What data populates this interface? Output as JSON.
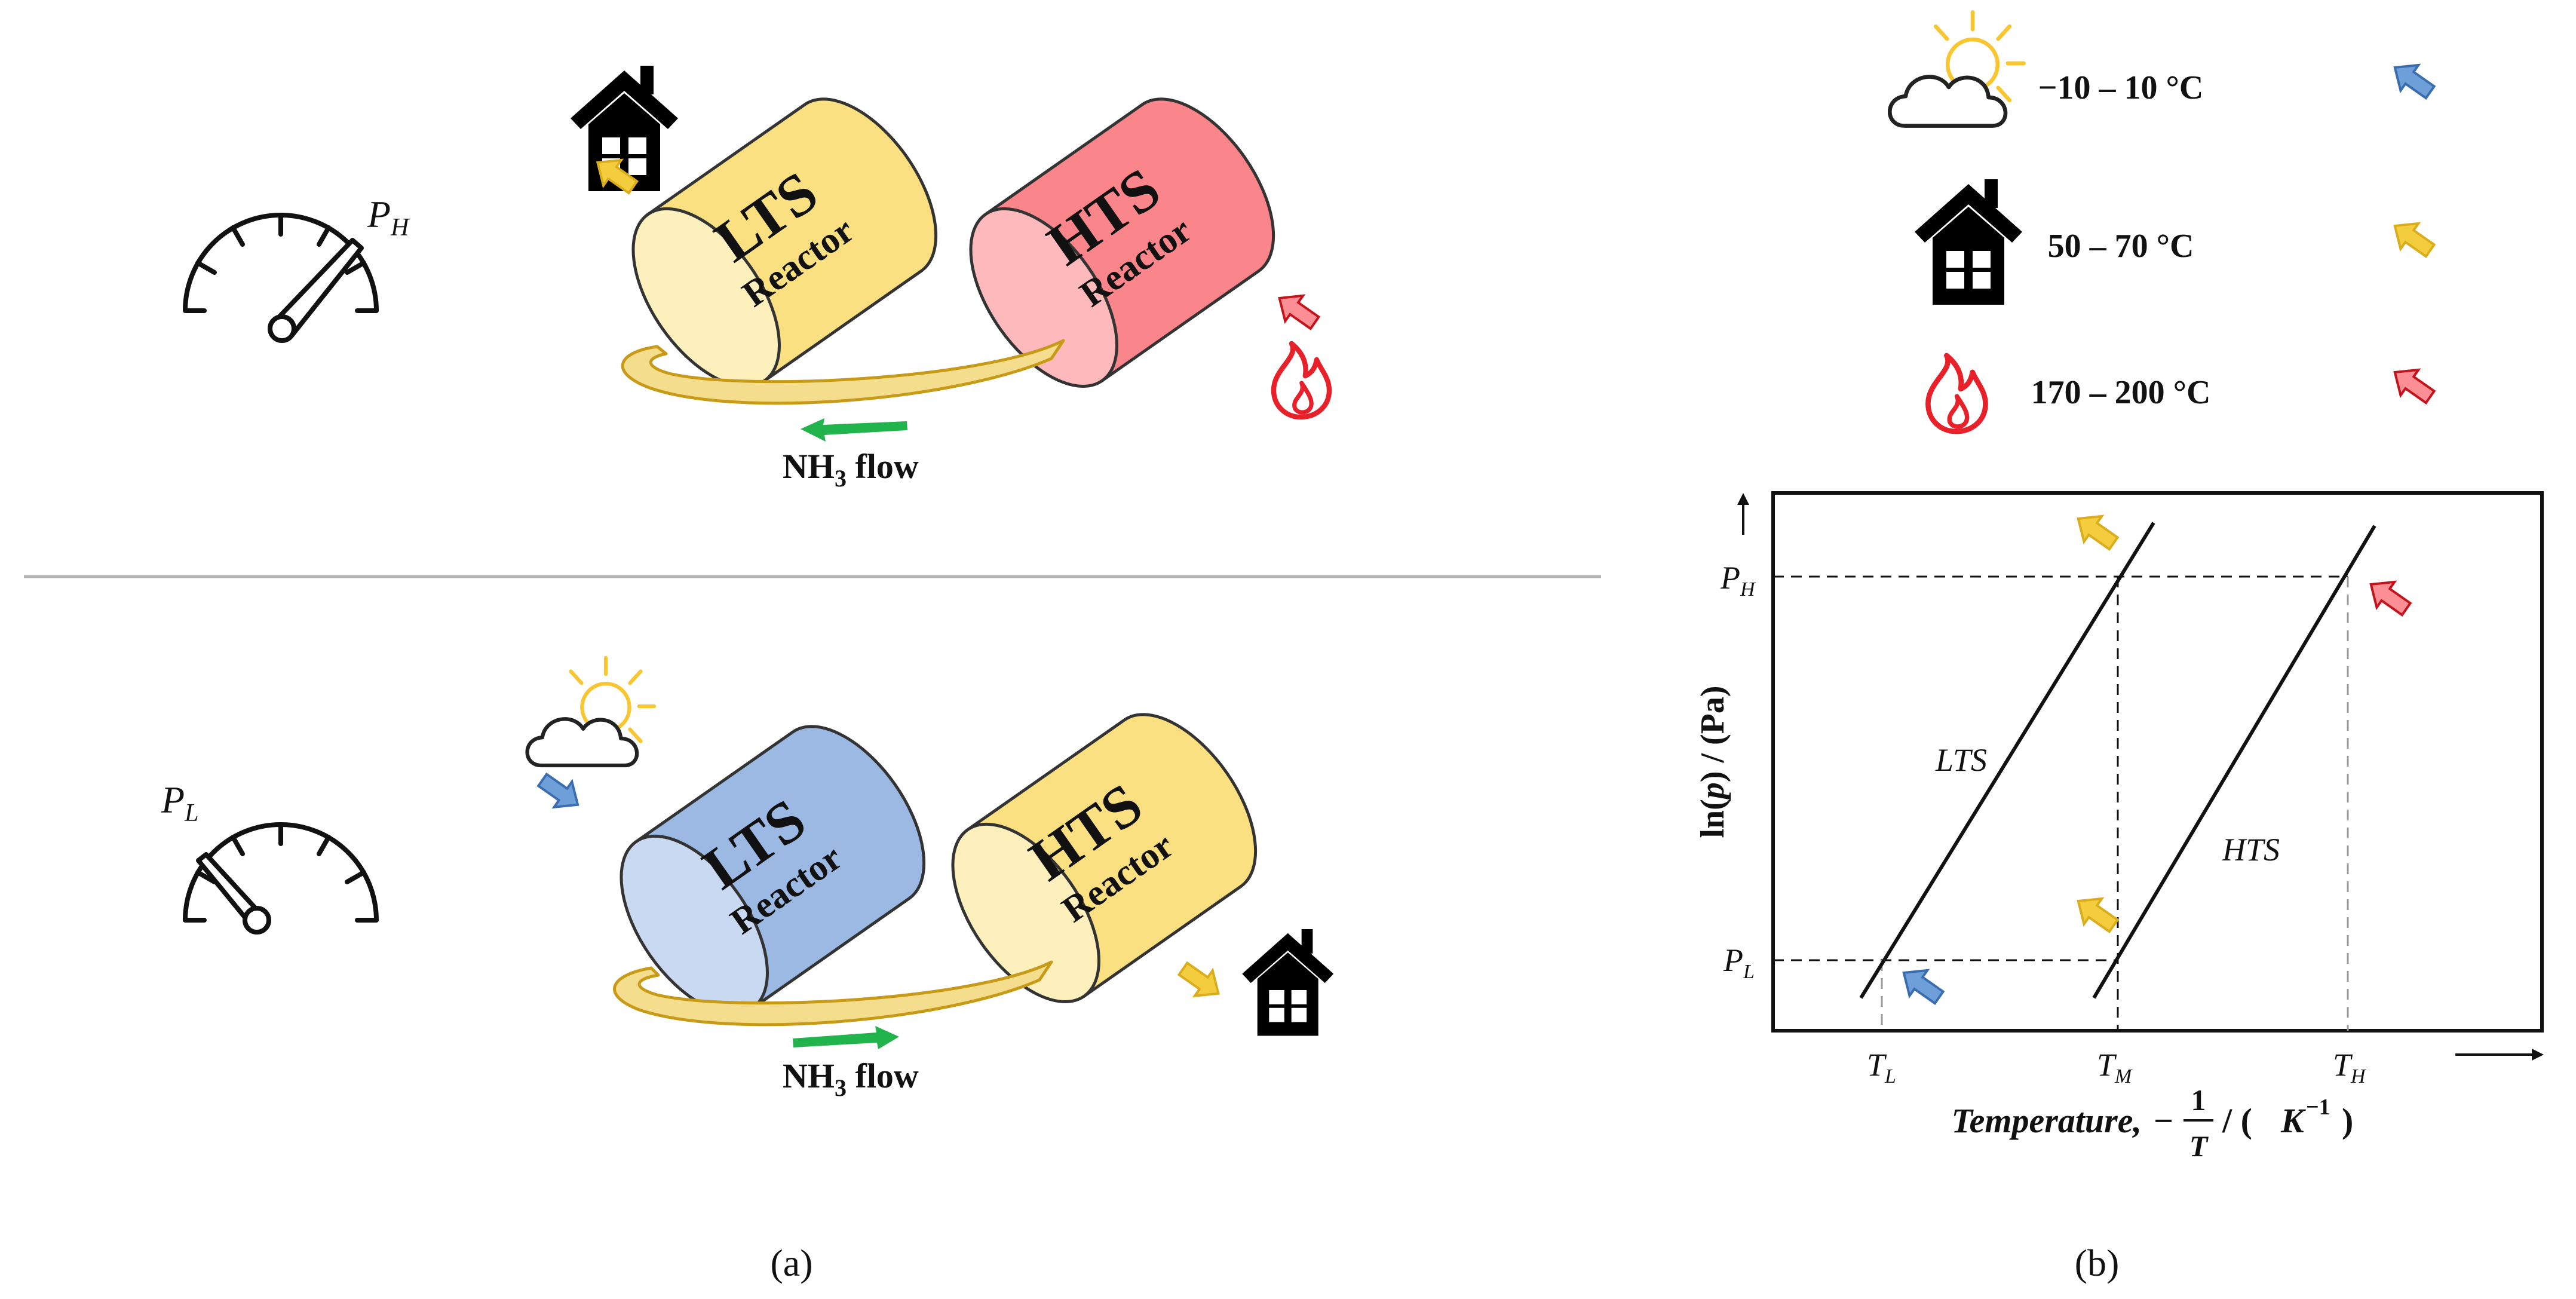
{
  "panel_a": {
    "caption": "(a)",
    "top": {
      "pressure_label": "P",
      "pressure_sub": "H",
      "lts_title": "LTS",
      "lts_subtitle": "Reactor",
      "hts_title": "HTS",
      "hts_subtitle": "Reactor",
      "flow_prefix": "NH",
      "flow_sub": "3",
      "flow_suffix": " flow"
    },
    "bottom": {
      "pressure_label": "P",
      "pressure_sub": "L",
      "lts_title": "LTS",
      "lts_subtitle": "Reactor",
      "hts_title": "HTS",
      "hts_subtitle": "Reactor",
      "flow_prefix": "NH",
      "flow_sub": "3",
      "flow_suffix": " flow"
    }
  },
  "panel_b": {
    "caption": "(b)",
    "legend": [
      {
        "icon": "weather-icon",
        "range": "−10 – 10 °C",
        "arrow_color": "#6f9fd8"
      },
      {
        "icon": "house-icon",
        "range": "50 – 70 °C",
        "arrow_color": "#f4cd3e"
      },
      {
        "icon": "flame-icon",
        "range": "170 – 200 °C",
        "arrow_color": "#e8202a"
      }
    ],
    "chart": {
      "ylabel_prefix": "ln(",
      "ylabel_var": "p",
      "ylabel_suffix": ") / (Pa)",
      "xlabel_main": "Temperature,",
      "xlabel_minus": "−",
      "xlabel_num": "1",
      "xlabel_den": "T",
      "xlabel_unit_open": "/ (",
      "xlabel_unit_K": "K",
      "xlabel_unit_exp": "−1",
      "xlabel_unit_close": ")",
      "p_high": "P",
      "p_high_sub": "H",
      "p_low": "P",
      "p_low_sub": "L",
      "t_low": "T",
      "t_low_sub": "L",
      "t_mid": "T",
      "t_mid_sub": "M",
      "t_high": "T",
      "t_high_sub": "H",
      "lts_line_label": "LTS",
      "hts_line_label": "HTS"
    }
  },
  "colors": {
    "lts_yellow": "#fbe082",
    "lts_yellow_face": "#fdf0bc",
    "hts_red": "#fa858a",
    "hts_red_face": "#fdb9bb",
    "lts_blue": "#9bb9e3",
    "lts_blue_face": "#c8d9f1",
    "flow_green": "#22b44c",
    "flame_red": "#e8202a",
    "arrow_blue": "#6f9fd8",
    "arrow_yellow": "#f4cd3e",
    "arrow_red": "#e8202a",
    "sun_yellow": "#f7c631"
  }
}
